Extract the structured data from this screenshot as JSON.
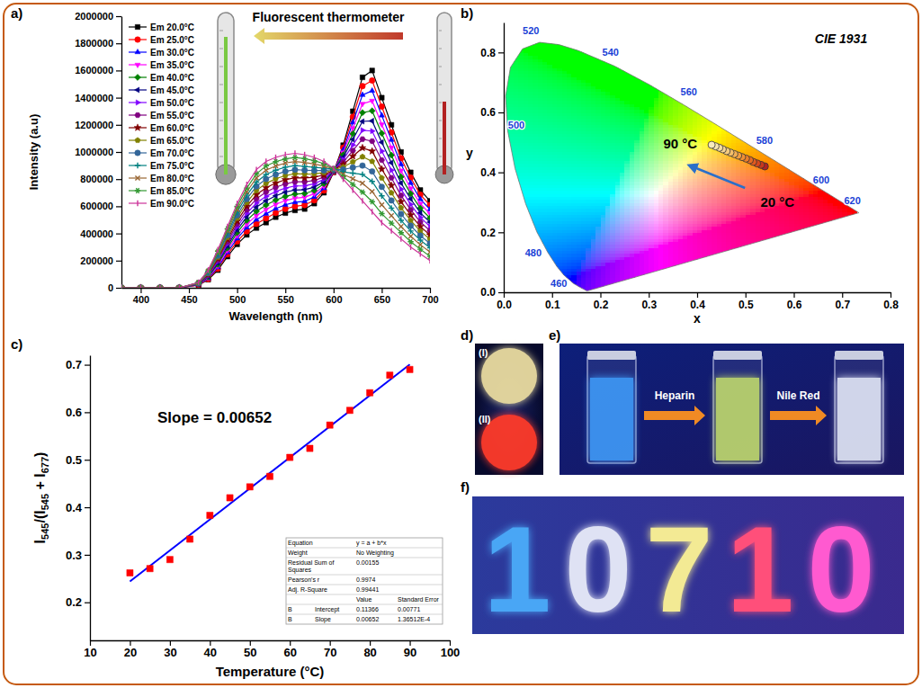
{
  "chart_data": [
    {
      "type": "line",
      "panel_label": "a)",
      "annotations": [
        "Fluorescent thermometer"
      ],
      "x_label": "Wavelength (nm)",
      "y_label": "Intensity (a.u)",
      "xlim": [
        380,
        700
      ],
      "xticks": [
        400,
        450,
        500,
        550,
        600,
        650,
        700
      ],
      "ylim": [
        0,
        2000000
      ],
      "yticks": [
        0,
        200000,
        400000,
        600000,
        800000,
        1000000,
        1200000,
        1400000,
        1600000,
        1800000,
        2000000
      ],
      "legend": "upper left",
      "x": [
        380,
        400,
        420,
        440,
        460,
        470,
        480,
        490,
        500,
        510,
        520,
        530,
        540,
        550,
        560,
        570,
        580,
        590,
        600,
        610,
        620,
        630,
        640,
        650,
        660,
        670,
        680,
        690,
        700
      ],
      "series": [
        {
          "name": "Em 20.0°C",
          "color": "#000000",
          "marker": "square",
          "values": [
            0,
            0,
            0,
            0,
            20000,
            60000,
            130000,
            230000,
            320000,
            390000,
            440000,
            480000,
            520000,
            550000,
            570000,
            580000,
            620000,
            700000,
            850000,
            1050000,
            1300000,
            1550000,
            1600000,
            1400000,
            1200000,
            1000000,
            850000,
            720000,
            640000
          ]
        },
        {
          "name": "Em 25.0°C",
          "color": "#ff0000",
          "marker": "circle",
          "values": [
            0,
            0,
            0,
            0,
            21000,
            65000,
            141000,
            246000,
            341000,
            416000,
            471000,
            512000,
            551000,
            581000,
            600000,
            609000,
            644000,
            716000,
            852000,
            1032000,
            1259000,
            1485000,
            1526000,
            1334000,
            1144000,
            954000,
            811000,
            686000,
            609000
          ]
        },
        {
          "name": "Em 30.0°C",
          "color": "#0000ff",
          "marker": "triangle-up",
          "values": [
            0,
            0,
            0,
            0,
            23000,
            70000,
            151000,
            261000,
            363000,
            443000,
            501000,
            544000,
            583000,
            611000,
            630000,
            637000,
            669000,
            733000,
            854000,
            1014000,
            1217000,
            1420000,
            1451000,
            1269000,
            1089000,
            909000,
            771000,
            653000,
            577000
          ]
        },
        {
          "name": "Em 35.0°C",
          "color": "#ff00ff",
          "marker": "triangle-down",
          "values": [
            0,
            0,
            0,
            0,
            24000,
            75000,
            162000,
            277000,
            384000,
            469000,
            532000,
            576000,
            614000,
            642000,
            660000,
            666000,
            693000,
            749000,
            856000,
            996000,
            1176000,
            1355000,
            1377000,
            1203000,
            1033000,
            863000,
            732000,
            619000,
            546000
          ]
        },
        {
          "name": "Em 40.0°C",
          "color": "#008000",
          "marker": "diamond",
          "values": [
            0,
            0,
            0,
            0,
            26000,
            80000,
            173000,
            293000,
            406000,
            496000,
            563000,
            609000,
            646000,
            673000,
            690000,
            694000,
            717000,
            766000,
            859000,
            979000,
            1134000,
            1290000,
            1303000,
            1137000,
            977000,
            817000,
            693000,
            586000,
            514000
          ]
        },
        {
          "name": "Em 45.0°C",
          "color": "#000080",
          "marker": "triangle-left",
          "values": [
            0,
            0,
            0,
            0,
            27000,
            85000,
            184000,
            309000,
            427000,
            522000,
            594000,
            641000,
            677000,
            704000,
            720000,
            723000,
            741000,
            782000,
            861000,
            961000,
            1093000,
            1225000,
            1229000,
            1071000,
            921000,
            771000,
            654000,
            552000,
            483000
          ]
        },
        {
          "name": "Em 50.0°C",
          "color": "#8000ff",
          "marker": "triangle-right",
          "values": [
            0,
            0,
            0,
            0,
            29000,
            90000,
            194000,
            324000,
            449000,
            549000,
            624000,
            673000,
            709000,
            734000,
            750000,
            751000,
            766000,
            799000,
            863000,
            943000,
            1051000,
            1160000,
            1154000,
            1006000,
            866000,
            726000,
            614000,
            519000,
            451000
          ]
        },
        {
          "name": "Em 55.0°C",
          "color": "#800080",
          "marker": "hexagon",
          "values": [
            0,
            0,
            0,
            0,
            30000,
            95000,
            205000,
            340000,
            470000,
            575000,
            655000,
            705000,
            740000,
            765000,
            780000,
            780000,
            790000,
            815000,
            865000,
            925000,
            1010000,
            1095000,
            1080000,
            940000,
            810000,
            680000,
            575000,
            485000,
            420000
          ]
        },
        {
          "name": "Em 60.0°C",
          "color": "#800000",
          "marker": "star",
          "values": [
            0,
            0,
            0,
            0,
            31000,
            100000,
            216000,
            356000,
            491000,
            601000,
            686000,
            737000,
            771000,
            796000,
            810000,
            809000,
            814000,
            831000,
            867000,
            907000,
            969000,
            1030000,
            1006000,
            874000,
            754000,
            634000,
            536000,
            451000,
            389000
          ]
        },
        {
          "name": "Em 65.0°C",
          "color": "#808000",
          "marker": "pentagon",
          "values": [
            0,
            0,
            0,
            0,
            33000,
            105000,
            226000,
            371000,
            513000,
            628000,
            716000,
            769000,
            803000,
            826000,
            840000,
            837000,
            839000,
            848000,
            869000,
            889000,
            927000,
            965000,
            931000,
            809000,
            699000,
            589000,
            496000,
            418000,
            357000
          ]
        },
        {
          "name": "Em 70.0°C",
          "color": "#336699",
          "marker": "circle",
          "values": [
            0,
            0,
            0,
            0,
            34000,
            110000,
            237000,
            387000,
            534000,
            654000,
            747000,
            801000,
            834000,
            857000,
            870000,
            866000,
            863000,
            864000,
            871000,
            871000,
            886000,
            900000,
            857000,
            743000,
            643000,
            543000,
            457000,
            384000,
            326000
          ]
        },
        {
          "name": "Em 75.0°C",
          "color": "#008080",
          "marker": "plus",
          "values": [
            0,
            0,
            0,
            0,
            36000,
            115000,
            248000,
            403000,
            556000,
            681000,
            778000,
            834000,
            866000,
            888000,
            900000,
            894000,
            887000,
            881000,
            874000,
            854000,
            844000,
            835000,
            783000,
            677000,
            587000,
            497000,
            418000,
            351000,
            294000
          ]
        },
        {
          "name": "Em 80.0°C",
          "color": "#996633",
          "marker": "cross",
          "values": [
            0,
            0,
            0,
            0,
            37000,
            120000,
            259000,
            419000,
            577000,
            707000,
            809000,
            866000,
            897000,
            919000,
            930000,
            923000,
            911000,
            897000,
            876000,
            836000,
            803000,
            770000,
            709000,
            611000,
            531000,
            451000,
            379000,
            317000,
            263000
          ]
        },
        {
          "name": "Em 85.0°C",
          "color": "#339933",
          "marker": "asterisk",
          "values": [
            0,
            0,
            0,
            0,
            39000,
            125000,
            269000,
            434000,
            599000,
            734000,
            839000,
            898000,
            929000,
            949000,
            960000,
            951000,
            936000,
            914000,
            878000,
            818000,
            761000,
            705000,
            634000,
            546000,
            476000,
            406000,
            339000,
            284000,
            231000
          ]
        },
        {
          "name": "Em 90.0°C",
          "color": "#cc3399",
          "marker": "vline",
          "values": [
            0,
            0,
            0,
            0,
            40000,
            130000,
            280000,
            450000,
            620000,
            760000,
            870000,
            930000,
            960000,
            980000,
            990000,
            980000,
            960000,
            930000,
            880000,
            800000,
            720000,
            640000,
            560000,
            480000,
            420000,
            360000,
            300000,
            250000,
            200000
          ]
        }
      ]
    },
    {
      "type": "scatter",
      "panel_label": "b)",
      "title": "CIE 1931",
      "x_label": "x",
      "y_label": "y",
      "xlim": [
        0,
        0.8
      ],
      "xticks": [
        {
          "value": 0,
          "label": "0.0"
        },
        0.1,
        0.2,
        0.3,
        0.4,
        0.5,
        0.6,
        0.7,
        0.8
      ],
      "ylim": [
        0,
        0.9
      ],
      "yticks": [
        {
          "value": 0,
          "label": "0.0"
        },
        0.2,
        0.4,
        0.6,
        0.8
      ],
      "annotations": [
        "20 °C",
        "90 °C"
      ],
      "locus": {
        "wavelengths": [
          380,
          420,
          440,
          450,
          460,
          470,
          475,
          480,
          485,
          490,
          495,
          500,
          505,
          510,
          515,
          520,
          525,
          530,
          540,
          550,
          560,
          570,
          580,
          590,
          600,
          610,
          620,
          640,
          660,
          700
        ],
        "x": [
          0.1741,
          0.1714,
          0.1644,
          0.1566,
          0.144,
          0.1241,
          0.1096,
          0.0913,
          0.0687,
          0.0454,
          0.0235,
          0.0082,
          0.0039,
          0.0139,
          0.0389,
          0.0743,
          0.1142,
          0.1547,
          0.2296,
          0.3016,
          0.3731,
          0.4441,
          0.5125,
          0.5752,
          0.627,
          0.6658,
          0.6915,
          0.719,
          0.73,
          0.7347
        ],
        "y": [
          0.005,
          0.0051,
          0.0109,
          0.0177,
          0.0297,
          0.0578,
          0.0868,
          0.1327,
          0.2007,
          0.295,
          0.4127,
          0.5384,
          0.6548,
          0.7502,
          0.812,
          0.8338,
          0.8262,
          0.8059,
          0.7543,
          0.6923,
          0.6245,
          0.5547,
          0.4866,
          0.4242,
          0.3725,
          0.334,
          0.3083,
          0.2809,
          0.27,
          0.2653
        ],
        "labels": [
          460,
          480,
          500,
          520,
          540,
          560,
          580,
          600,
          620
        ]
      },
      "series": [
        {
          "marker": "circle",
          "x": [
            0.54,
            0.532,
            0.524,
            0.516,
            0.509,
            0.501,
            0.493,
            0.485,
            0.477,
            0.469,
            0.461,
            0.453,
            0.446,
            0.438,
            0.43
          ],
          "values": [
            0.42,
            0.425,
            0.43,
            0.435,
            0.441,
            0.446,
            0.451,
            0.456,
            0.461,
            0.466,
            0.471,
            0.477,
            0.482,
            0.487,
            0.492
          ],
          "colors": [
            "#b22222",
            "#c8381e",
            "#d9481c",
            "#e25a1e",
            "#e86c22",
            "#ec7e2a",
            "#ef8f35",
            "#f1a043",
            "#f3b055",
            "#f4bf6a",
            "#f5cb7f",
            "#f5d592",
            "#f6dea2",
            "#f6e5b0",
            "#f7ebbd"
          ]
        }
      ]
    },
    {
      "type": "scatter",
      "panel_label": "c)",
      "x_label": "Temperature (°C)",
      "y_label": "I545/(I545 + I677)",
      "annotations": [
        "Slope = 0.00652"
      ],
      "xlim": [
        10,
        100
      ],
      "xticks": [
        10,
        20,
        30,
        40,
        50,
        60,
        70,
        80,
        90,
        100
      ],
      "ylim": [
        0.12,
        0.72
      ],
      "yticks": [
        0.2,
        0.3,
        0.4,
        0.5,
        0.6,
        0.7
      ],
      "x": [
        20,
        25,
        30,
        35,
        40,
        45,
        50,
        55,
        60,
        65,
        70,
        75,
        80,
        85,
        90
      ],
      "values": [
        0.262,
        0.271,
        0.29,
        0.333,
        0.383,
        0.42,
        0.443,
        0.465,
        0.505,
        0.524,
        0.573,
        0.604,
        0.641,
        0.678,
        0.69
      ],
      "color": "#ff0000",
      "marker": "square",
      "fit": {
        "intercept": 0.11366,
        "slope": 0.00652,
        "color": "#0000ff"
      },
      "fit_table": {
        "rows": [
          [
            "Equation",
            null,
            "y = a + b*x",
            null
          ],
          [
            "Weight",
            null,
            "No Weighting",
            null
          ],
          [
            "Residual Sum of Squares",
            null,
            "0.00155",
            null
          ],
          [
            "Pearson's r",
            null,
            "0.9974",
            null
          ],
          [
            "Adj. R-Square",
            null,
            "0.99441",
            null
          ],
          [
            null,
            null,
            "Value",
            "Standard Error"
          ],
          [
            "B",
            "Intercept",
            "0.11366",
            "0.00771"
          ],
          [
            "B",
            "Slope",
            "0.00652",
            "1.36512E-4"
          ]
        ]
      }
    }
  ],
  "photos": {
    "d": {
      "panel_label": "d)",
      "labels": [
        "(I)",
        "(II)"
      ],
      "colors": [
        "#eadca0",
        "#ff3a2a"
      ]
    },
    "e": {
      "panel_label": "e)",
      "steps": [
        "Heparin",
        "Nile Red"
      ],
      "colors": [
        "#3fa0ff",
        "#c9e46c",
        "#eef3ff"
      ]
    },
    "f": {
      "panel_label": "f)",
      "characters": [
        "1",
        "0",
        "7",
        "1",
        "0"
      ],
      "colors": [
        "#4aa6f5",
        "#dfe2f4",
        "#f3ea94",
        "#ff4f7a",
        "#ff5ad0"
      ]
    }
  }
}
